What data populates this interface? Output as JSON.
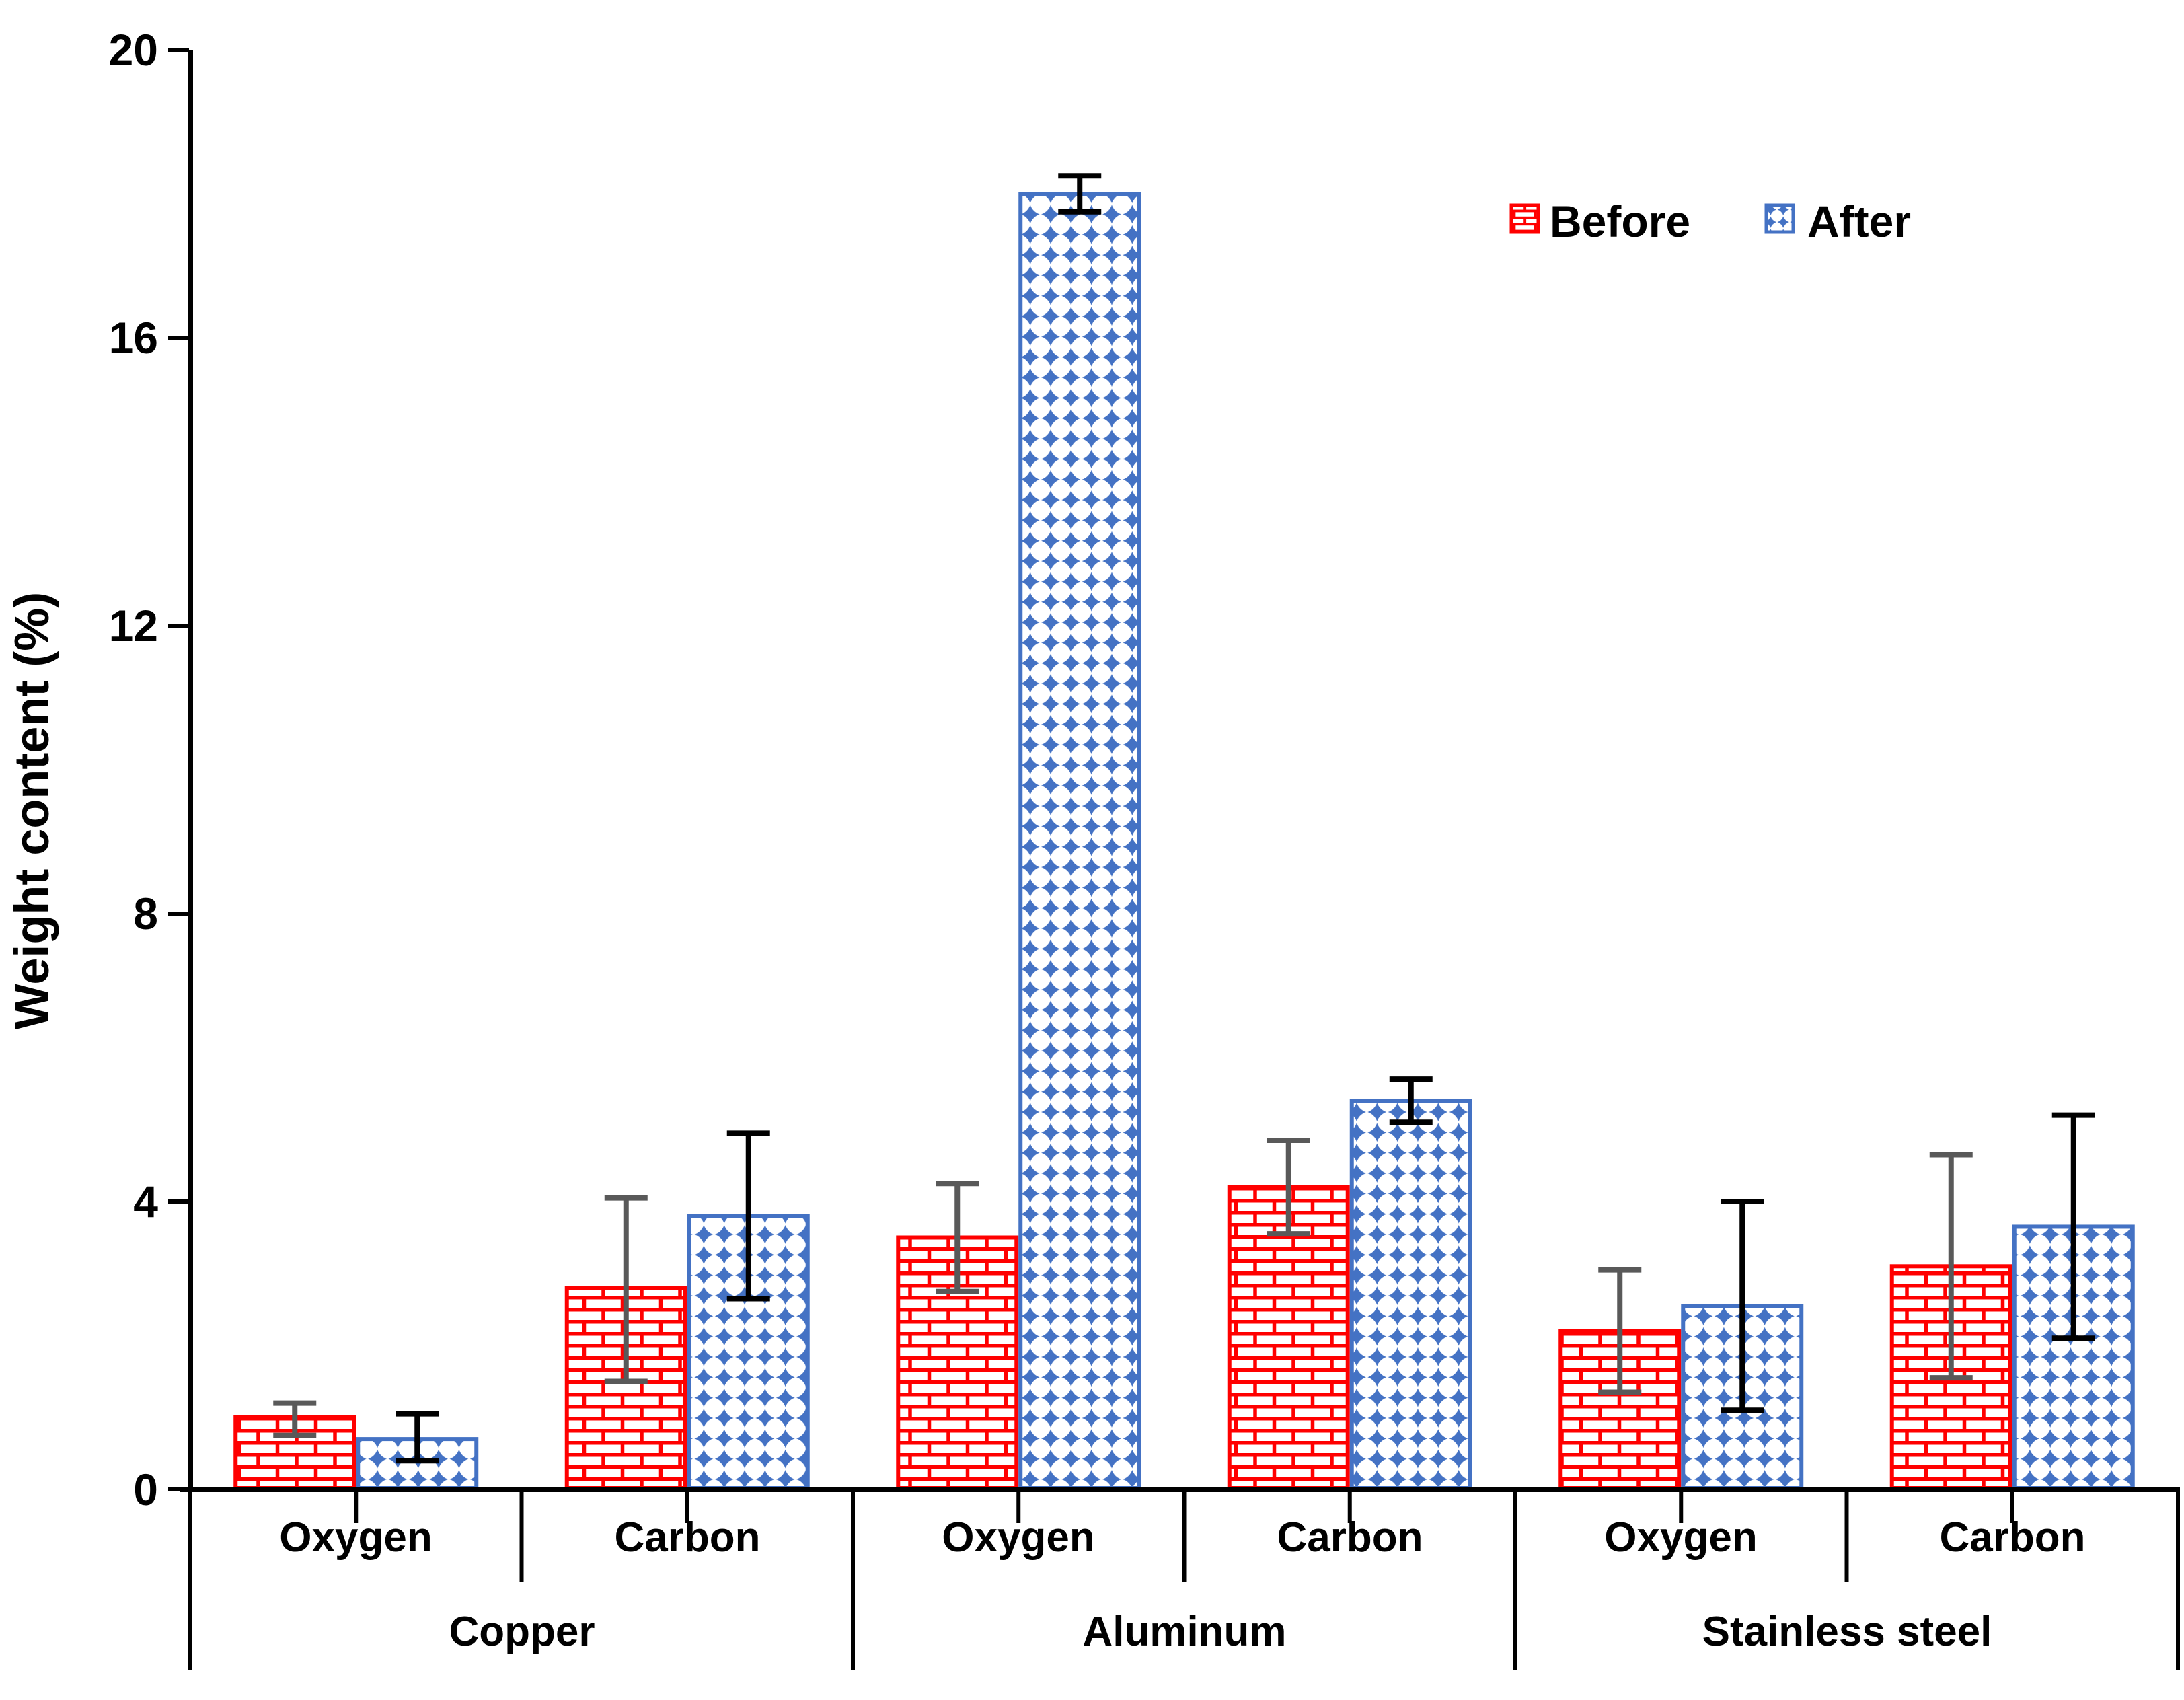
{
  "chart_data": {
    "type": "bar",
    "title": "",
    "ylabel": "Weight content (%)",
    "xlabel": "",
    "ylim": [
      0,
      20
    ],
    "yticks": [
      0,
      4,
      8,
      12,
      16,
      20
    ],
    "grid": false,
    "legend_position": "top-right",
    "element_labels": [
      "Oxygen",
      "Carbon",
      "Oxygen",
      "Carbon",
      "Oxygen",
      "Carbon"
    ],
    "material_labels": [
      "Copper",
      "Aluminum",
      "Stainless steel"
    ],
    "series": [
      {
        "name": "Before",
        "pattern": "brick",
        "color": "#FF0000",
        "error_color": "#595959",
        "values": [
          1.0,
          2.8,
          3.5,
          4.2,
          2.2,
          3.1
        ],
        "error_low": [
          0.75,
          1.5,
          2.75,
          3.55,
          1.35,
          1.55
        ],
        "error_high": [
          1.2,
          4.05,
          4.25,
          4.85,
          3.05,
          4.65
        ]
      },
      {
        "name": "After",
        "pattern": "diamond",
        "color": "#4472C4",
        "error_color": "#000000",
        "values": [
          0.7,
          3.8,
          18.0,
          5.4,
          2.55,
          3.65
        ],
        "error_low": [
          0.4,
          2.65,
          17.75,
          5.1,
          1.1,
          2.1
        ],
        "error_high": [
          1.05,
          4.95,
          18.25,
          5.7,
          4.0,
          5.2
        ]
      }
    ],
    "axis_color": "#000000"
  }
}
